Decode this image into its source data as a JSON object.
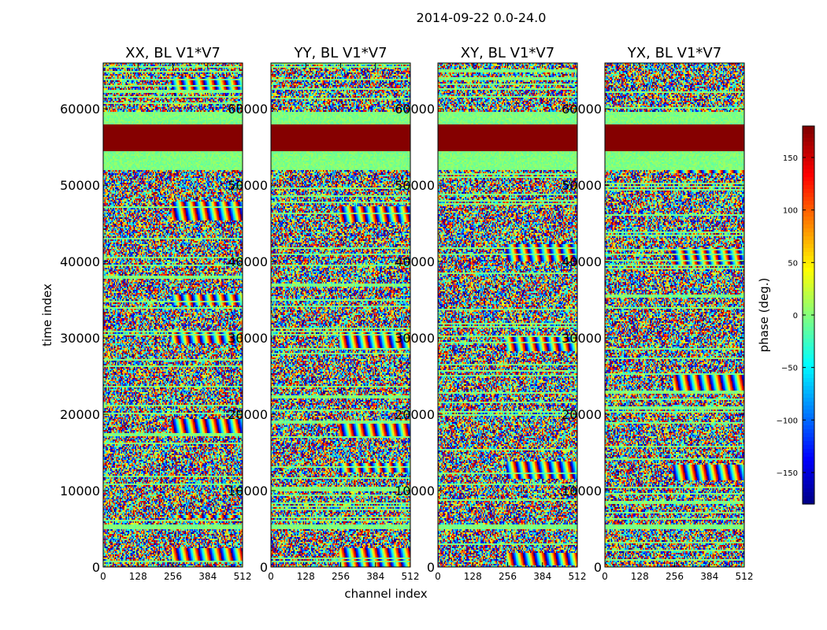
{
  "chart_data": {
    "type": "heatmap",
    "title": "2014-09-22 0.0-24.0",
    "xlabel": "channel index",
    "ylabel": "time index",
    "xlim": [
      0,
      512
    ],
    "ylim": [
      0,
      66000
    ],
    "x_ticks": [
      0,
      128,
      256,
      384,
      512
    ],
    "y_ticks": [
      0,
      10000,
      20000,
      30000,
      40000,
      50000,
      60000
    ],
    "colorbar": {
      "label": "phase (deg.)",
      "range": [
        -180,
        180
      ],
      "ticks": [
        150,
        100,
        50,
        0,
        -50,
        -100,
        -150
      ],
      "colormap": "jet"
    },
    "panels": [
      {
        "title": "XX, BL V1*V7"
      },
      {
        "title": "YY, BL V1*V7"
      },
      {
        "title": "XY, BL V1*V7"
      },
      {
        "title": "YX, BL V1*V7"
      }
    ],
    "bands": [
      {
        "y0": 52000,
        "y1": 54500,
        "phase": 0,
        "note": "flat green band"
      },
      {
        "y0": 54500,
        "y1": 58000,
        "phase": 180,
        "note": "dark red flagged band"
      },
      {
        "y0": 58000,
        "y1": 59800,
        "phase": 0,
        "note": "flat green band"
      },
      {
        "y0": 5000,
        "y1": 5600,
        "phase": 0,
        "note": "flat green band"
      }
    ]
  }
}
